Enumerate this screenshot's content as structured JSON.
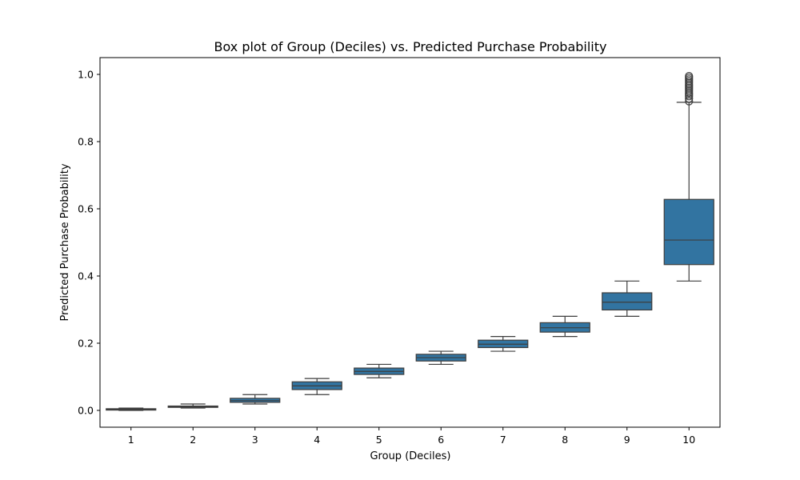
{
  "chart_data": {
    "type": "box",
    "title": "Box plot of Group (Deciles) vs. Predicted Purchase Probability",
    "xlabel": "Group (Deciles)",
    "ylabel": "Predicted Purchase Probability",
    "ylim": [
      -0.05,
      1.05
    ],
    "yticks": [
      "0.0",
      "0.2",
      "0.4",
      "0.6",
      "0.8",
      "1.0"
    ],
    "categories": [
      "1",
      "2",
      "3",
      "4",
      "5",
      "6",
      "7",
      "8",
      "9",
      "10"
    ],
    "box_color": "#3274a1",
    "line_color": "#3d3d3d",
    "grid": false,
    "boxes": [
      {
        "whisker_low": 0.0,
        "q1": 0.001,
        "median": 0.003,
        "q3": 0.005,
        "whisker_high": 0.007,
        "outliers": []
      },
      {
        "whisker_low": 0.007,
        "q1": 0.009,
        "median": 0.011,
        "q3": 0.013,
        "whisker_high": 0.019,
        "outliers": []
      },
      {
        "whisker_low": 0.019,
        "q1": 0.024,
        "median": 0.029,
        "q3": 0.036,
        "whisker_high": 0.047,
        "outliers": []
      },
      {
        "whisker_low": 0.047,
        "q1": 0.062,
        "median": 0.073,
        "q3": 0.085,
        "whisker_high": 0.095,
        "outliers": []
      },
      {
        "whisker_low": 0.097,
        "q1": 0.107,
        "median": 0.116,
        "q3": 0.126,
        "whisker_high": 0.137,
        "outliers": []
      },
      {
        "whisker_low": 0.137,
        "q1": 0.147,
        "median": 0.157,
        "q3": 0.167,
        "whisker_high": 0.176,
        "outliers": []
      },
      {
        "whisker_low": 0.176,
        "q1": 0.187,
        "median": 0.197,
        "q3": 0.209,
        "whisker_high": 0.22,
        "outliers": []
      },
      {
        "whisker_low": 0.22,
        "q1": 0.233,
        "median": 0.246,
        "q3": 0.261,
        "whisker_high": 0.28,
        "outliers": []
      },
      {
        "whisker_low": 0.28,
        "q1": 0.299,
        "median": 0.322,
        "q3": 0.35,
        "whisker_high": 0.385,
        "outliers": []
      },
      {
        "whisker_low": 0.385,
        "q1": 0.434,
        "median": 0.507,
        "q3": 0.628,
        "whisker_high": 0.917,
        "outliers": [
          0.92,
          0.928,
          0.935,
          0.94,
          0.945,
          0.95,
          0.955,
          0.96,
          0.965,
          0.97,
          0.975,
          0.98,
          0.985,
          0.99,
          0.995
        ]
      }
    ]
  }
}
